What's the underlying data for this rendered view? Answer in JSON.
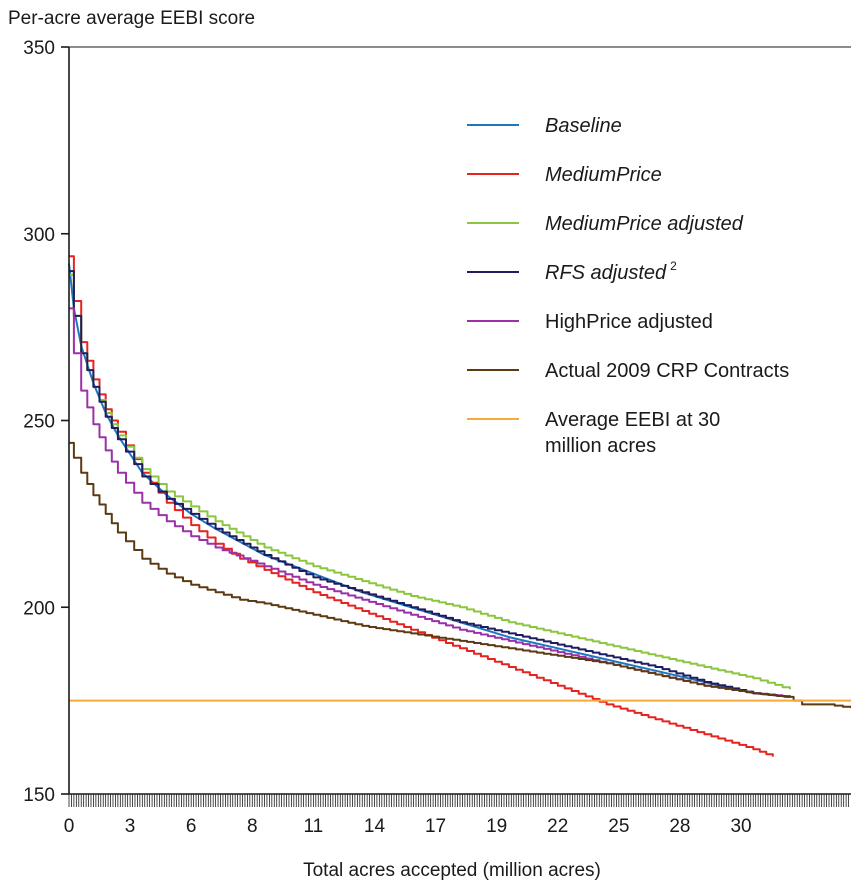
{
  "chart_data": {
    "type": "line",
    "ylabel": "Per-acre average EEBI score",
    "xlabel": "Total acres accepted (million acres)",
    "ylim": [
      150,
      350
    ],
    "xlim": [
      0,
      32
    ],
    "yticks": [
      150,
      200,
      250,
      300,
      350
    ],
    "xticks": [
      {
        "value": 0,
        "label": "0"
      },
      {
        "value": 2.5,
        "label": "3"
      },
      {
        "value": 5,
        "label": "6"
      },
      {
        "value": 7.5,
        "label": "8"
      },
      {
        "value": 10,
        "label": "11"
      },
      {
        "value": 12.5,
        "label": "14"
      },
      {
        "value": 15,
        "label": "17"
      },
      {
        "value": 17.5,
        "label": "19"
      },
      {
        "value": 20,
        "label": "22"
      },
      {
        "value": 22.5,
        "label": "25"
      },
      {
        "value": 25,
        "label": "28"
      },
      {
        "value": 27.5,
        "label": "30"
      }
    ],
    "legend_position": "top-right",
    "grid": false,
    "series": [
      {
        "name": "Baseline",
        "italic": true,
        "color": "#1f77c0",
        "stepped": false,
        "x": [
          0,
          0.2,
          0.5,
          1,
          1.5,
          2,
          3,
          4,
          5,
          6,
          8,
          10,
          12,
          14,
          16,
          18,
          20,
          22,
          24,
          26,
          28,
          29.5
        ],
        "y": [
          292,
          280,
          270,
          260,
          252,
          246,
          236,
          230,
          225,
          221,
          214,
          209,
          204,
          200,
          196,
          192,
          189,
          186,
          183,
          180,
          177,
          176
        ]
      },
      {
        "name": "MediumPrice",
        "italic": true,
        "color": "#e52421",
        "stepped": true,
        "x": [
          0,
          0.2,
          0.5,
          1,
          1.5,
          2,
          3,
          4,
          5,
          6,
          7,
          8,
          10,
          12,
          14,
          16,
          18,
          20,
          22,
          24,
          26,
          28,
          28.8
        ],
        "y": [
          294,
          282,
          271,
          261,
          253,
          247,
          236,
          228,
          222,
          217,
          213,
          210,
          204,
          199,
          194,
          189,
          184,
          179,
          174,
          170,
          166,
          162,
          160
        ]
      },
      {
        "name": "MediumPrice adjusted",
        "italic": true,
        "color": "#8cc63f",
        "stepped": true,
        "x": [
          0,
          0.2,
          0.5,
          1,
          1.5,
          2,
          3,
          4,
          5,
          6,
          8,
          10,
          12,
          14,
          16,
          18,
          20,
          22,
          24,
          26,
          28,
          29.5
        ],
        "y": [
          289,
          278,
          268,
          259,
          252,
          246,
          237,
          231,
          227,
          223,
          216,
          211,
          207,
          203,
          200,
          196,
          193,
          190,
          187,
          184,
          181,
          178
        ]
      },
      {
        "name": "RFS adjusted",
        "superscript": "2",
        "italic": true,
        "color": "#1f1d5e",
        "stepped": true,
        "x": [
          0,
          0.2,
          0.5,
          1,
          1.5,
          2,
          3,
          4,
          5,
          6,
          8,
          10,
          12,
          14,
          16,
          18,
          20,
          22,
          24,
          26,
          28,
          29.5
        ],
        "y": [
          290,
          278,
          268,
          259,
          251,
          245,
          235,
          229,
          225,
          221,
          214,
          208,
          204,
          200,
          196,
          193,
          190,
          187,
          184,
          180,
          177,
          176
        ]
      },
      {
        "name": "HighPrice adjusted",
        "italic": false,
        "color": "#9b30a8",
        "stepped": true,
        "x": [
          0,
          0.2,
          0.5,
          1,
          1.5,
          2,
          3,
          4,
          5,
          6,
          8,
          10,
          12,
          14,
          16,
          18,
          20,
          22,
          24,
          26,
          28,
          29.5
        ],
        "y": [
          280,
          268,
          258,
          249,
          242,
          236,
          228,
          223,
          219,
          216,
          211,
          206,
          202,
          198,
          194,
          191,
          188,
          185,
          182,
          179,
          177,
          176
        ]
      },
      {
        "name": "Actual 2009 CRP Contracts",
        "italic": false,
        "color": "#5c3a12",
        "stepped": true,
        "x": [
          0,
          0.2,
          0.5,
          1,
          1.5,
          2,
          3,
          4,
          5,
          6,
          7,
          8,
          10,
          12,
          14,
          16,
          18,
          20,
          22,
          24,
          26,
          28,
          29.3,
          30,
          31,
          32
        ],
        "y": [
          244,
          240,
          236,
          230,
          225,
          220,
          213,
          209,
          206,
          204,
          202,
          201,
          198,
          195,
          193,
          191,
          189,
          187,
          185,
          182,
          179,
          177,
          176,
          174,
          174,
          173
        ]
      },
      {
        "name": "Average EEBI at 30 million acres",
        "italic": false,
        "color": "#f7a93b",
        "stepped": false,
        "x": [
          0,
          32
        ],
        "y": [
          175,
          175
        ]
      }
    ]
  }
}
